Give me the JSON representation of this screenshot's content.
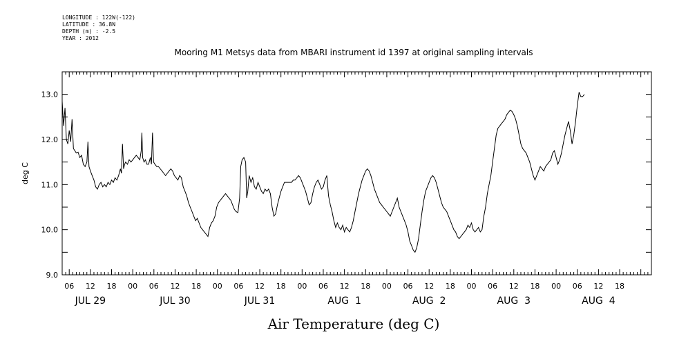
{
  "metadata": {
    "lines": [
      "LONGITUDE : 122W(-122)",
      "LATITUDE : 36.8N",
      "DEPTH (m) : -2.5",
      "YEAR : 2012"
    ]
  },
  "chart_data": {
    "type": "line",
    "title": "Mooring M1 Metsys data from MBARI instrument id 1397 at original sampling intervals",
    "xlabel": "Air Temperature (deg C)",
    "ylabel": "deg C",
    "ylim": [
      9.0,
      13.5
    ],
    "yticks": [
      "9.0",
      "10.0",
      "11.0",
      "12.0",
      "13.0"
    ],
    "xlim_hours": [
      0,
      167
    ],
    "hour_tick_labels": [
      "06",
      "12",
      "18",
      "00",
      "06",
      "12",
      "18",
      "00",
      "06",
      "12",
      "18",
      "00",
      "06",
      "12",
      "18",
      "00",
      "06",
      "12",
      "18",
      "00",
      "06",
      "12",
      "18",
      "00",
      "06",
      "12",
      "18"
    ],
    "day_labels": [
      "JUL 29",
      "JUL 30",
      "JUL 31",
      "AUG  1",
      "AUG  2",
      "AUG  3",
      "AUG  4"
    ],
    "grid": false,
    "series": [
      {
        "values": [
          [
            0,
            12.85
          ],
          [
            0.4,
            12.3
          ],
          [
            0.8,
            12.7
          ],
          [
            1.2,
            12.0
          ],
          [
            1.6,
            11.9
          ],
          [
            2,
            12.2
          ],
          [
            2.4,
            11.95
          ],
          [
            2.8,
            12.45
          ],
          [
            3.2,
            11.8
          ],
          [
            3.6,
            11.75
          ],
          [
            4,
            11.7
          ],
          [
            4.5,
            11.72
          ],
          [
            5,
            11.6
          ],
          [
            5.5,
            11.65
          ],
          [
            6,
            11.45
          ],
          [
            6.5,
            11.4
          ],
          [
            7,
            11.5
          ],
          [
            7.3,
            11.95
          ],
          [
            7.6,
            11.4
          ],
          [
            8,
            11.3
          ],
          [
            8.5,
            11.2
          ],
          [
            9,
            11.1
          ],
          [
            9.5,
            10.95
          ],
          [
            10,
            10.9
          ],
          [
            10.5,
            11.0
          ],
          [
            11,
            11.05
          ],
          [
            11.5,
            10.95
          ],
          [
            12,
            11.0
          ],
          [
            12.5,
            10.95
          ],
          [
            13,
            11.05
          ],
          [
            13.5,
            11.0
          ],
          [
            14,
            11.1
          ],
          [
            14.5,
            11.05
          ],
          [
            15,
            11.15
          ],
          [
            15.5,
            11.1
          ],
          [
            16,
            11.2
          ],
          [
            16.5,
            11.35
          ],
          [
            16.8,
            11.25
          ],
          [
            17.1,
            11.9
          ],
          [
            17.4,
            11.35
          ],
          [
            17.7,
            11.45
          ],
          [
            18,
            11.5
          ],
          [
            18.5,
            11.45
          ],
          [
            19,
            11.55
          ],
          [
            19.5,
            11.5
          ],
          [
            20,
            11.55
          ],
          [
            20.5,
            11.6
          ],
          [
            21,
            11.65
          ],
          [
            21.5,
            11.6
          ],
          [
            22,
            11.55
          ],
          [
            22.4,
            11.75
          ],
          [
            22.6,
            12.15
          ],
          [
            22.8,
            11.6
          ],
          [
            23.2,
            11.5
          ],
          [
            23.6,
            11.55
          ],
          [
            24,
            11.45
          ],
          [
            24.5,
            11.45
          ],
          [
            25,
            11.6
          ],
          [
            25.3,
            11.45
          ],
          [
            25.6,
            12.15
          ],
          [
            25.9,
            11.5
          ],
          [
            26.3,
            11.45
          ],
          [
            26.8,
            11.4
          ],
          [
            27.3,
            11.4
          ],
          [
            27.8,
            11.35
          ],
          [
            28.3,
            11.3
          ],
          [
            28.8,
            11.25
          ],
          [
            29.3,
            11.2
          ],
          [
            29.8,
            11.25
          ],
          [
            30.3,
            11.3
          ],
          [
            30.8,
            11.35
          ],
          [
            31.3,
            11.3
          ],
          [
            31.8,
            11.2
          ],
          [
            32.3,
            11.15
          ],
          [
            32.8,
            11.1
          ],
          [
            33.3,
            11.2
          ],
          [
            33.8,
            11.15
          ],
          [
            34.3,
            10.95
          ],
          [
            34.8,
            10.85
          ],
          [
            35.3,
            10.75
          ],
          [
            35.8,
            10.6
          ],
          [
            36.3,
            10.5
          ],
          [
            36.8,
            10.4
          ],
          [
            37.3,
            10.3
          ],
          [
            37.8,
            10.2
          ],
          [
            38.3,
            10.25
          ],
          [
            38.8,
            10.15
          ],
          [
            39.3,
            10.05
          ],
          [
            39.8,
            10.0
          ],
          [
            40.3,
            9.95
          ],
          [
            40.8,
            9.9
          ],
          [
            41.3,
            9.85
          ],
          [
            41.8,
            10.05
          ],
          [
            42.3,
            10.15
          ],
          [
            42.8,
            10.2
          ],
          [
            43.3,
            10.3
          ],
          [
            43.8,
            10.5
          ],
          [
            44.3,
            10.6
          ],
          [
            44.8,
            10.65
          ],
          [
            45.3,
            10.7
          ],
          [
            45.8,
            10.75
          ],
          [
            46.3,
            10.8
          ],
          [
            46.8,
            10.75
          ],
          [
            47.3,
            10.7
          ],
          [
            47.8,
            10.65
          ],
          [
            48.3,
            10.55
          ],
          [
            48.8,
            10.45
          ],
          [
            49.3,
            10.4
          ],
          [
            49.8,
            10.38
          ],
          [
            50.3,
            10.7
          ],
          [
            50.6,
            11.4
          ],
          [
            51,
            11.55
          ],
          [
            51.5,
            11.6
          ],
          [
            52,
            11.5
          ],
          [
            52.3,
            10.7
          ],
          [
            52.6,
            10.85
          ],
          [
            53,
            11.2
          ],
          [
            53.5,
            11.05
          ],
          [
            54,
            11.15
          ],
          [
            54.5,
            10.95
          ],
          [
            55,
            10.9
          ],
          [
            55.5,
            11.05
          ],
          [
            56,
            10.95
          ],
          [
            56.5,
            10.85
          ],
          [
            57,
            10.8
          ],
          [
            57.5,
            10.9
          ],
          [
            58,
            10.85
          ],
          [
            58.5,
            10.9
          ],
          [
            59,
            10.8
          ],
          [
            59.5,
            10.5
          ],
          [
            60,
            10.3
          ],
          [
            60.5,
            10.35
          ],
          [
            61,
            10.55
          ],
          [
            61.5,
            10.7
          ],
          [
            62,
            10.85
          ],
          [
            62.5,
            10.95
          ],
          [
            63,
            11.05
          ],
          [
            63.5,
            11.05
          ],
          [
            64,
            11.05
          ],
          [
            64.5,
            11.05
          ],
          [
            65,
            11.05
          ],
          [
            65.5,
            11.1
          ],
          [
            66,
            11.1
          ],
          [
            66.5,
            11.15
          ],
          [
            67,
            11.2
          ],
          [
            67.5,
            11.15
          ],
          [
            68,
            11.05
          ],
          [
            68.5,
            10.95
          ],
          [
            69,
            10.85
          ],
          [
            69.5,
            10.7
          ],
          [
            70,
            10.55
          ],
          [
            70.5,
            10.6
          ],
          [
            71,
            10.8
          ],
          [
            71.5,
            10.95
          ],
          [
            72,
            11.05
          ],
          [
            72.5,
            11.1
          ],
          [
            73,
            11.0
          ],
          [
            73.5,
            10.9
          ],
          [
            74,
            10.95
          ],
          [
            74.5,
            11.1
          ],
          [
            75,
            11.2
          ],
          [
            75.5,
            10.75
          ],
          [
            76,
            10.55
          ],
          [
            76.5,
            10.4
          ],
          [
            77,
            10.2
          ],
          [
            77.5,
            10.05
          ],
          [
            78,
            10.15
          ],
          [
            78.5,
            10.05
          ],
          [
            79,
            10.0
          ],
          [
            79.5,
            10.1
          ],
          [
            80,
            9.95
          ],
          [
            80.5,
            10.05
          ],
          [
            81,
            10.0
          ],
          [
            81.5,
            9.95
          ],
          [
            82,
            10.05
          ],
          [
            82.5,
            10.2
          ],
          [
            83,
            10.4
          ],
          [
            83.5,
            10.6
          ],
          [
            84,
            10.8
          ],
          [
            84.5,
            10.95
          ],
          [
            85,
            11.1
          ],
          [
            85.5,
            11.2
          ],
          [
            86,
            11.3
          ],
          [
            86.5,
            11.35
          ],
          [
            87,
            11.3
          ],
          [
            87.5,
            11.2
          ],
          [
            88,
            11.05
          ],
          [
            88.5,
            10.9
          ],
          [
            89,
            10.8
          ],
          [
            89.5,
            10.7
          ],
          [
            90,
            10.6
          ],
          [
            90.5,
            10.55
          ],
          [
            91,
            10.5
          ],
          [
            91.5,
            10.45
          ],
          [
            92,
            10.4
          ],
          [
            92.5,
            10.35
          ],
          [
            93,
            10.3
          ],
          [
            93.5,
            10.4
          ],
          [
            94,
            10.5
          ],
          [
            94.5,
            10.6
          ],
          [
            95,
            10.7
          ],
          [
            95.5,
            10.5
          ],
          [
            96,
            10.4
          ],
          [
            96.5,
            10.3
          ],
          [
            97,
            10.2
          ],
          [
            97.5,
            10.1
          ],
          [
            98,
            9.95
          ],
          [
            98.5,
            9.75
          ],
          [
            99,
            9.65
          ],
          [
            99.5,
            9.55
          ],
          [
            100,
            9.5
          ],
          [
            100.5,
            9.6
          ],
          [
            101,
            9.8
          ],
          [
            101.5,
            10.1
          ],
          [
            102,
            10.4
          ],
          [
            102.5,
            10.65
          ],
          [
            103,
            10.85
          ],
          [
            103.5,
            10.95
          ],
          [
            104,
            11.05
          ],
          [
            104.5,
            11.15
          ],
          [
            105,
            11.2
          ],
          [
            105.5,
            11.15
          ],
          [
            106,
            11.05
          ],
          [
            106.5,
            10.9
          ],
          [
            107,
            10.75
          ],
          [
            107.5,
            10.6
          ],
          [
            108,
            10.5
          ],
          [
            108.5,
            10.45
          ],
          [
            109,
            10.4
          ],
          [
            109.5,
            10.3
          ],
          [
            110,
            10.2
          ],
          [
            110.5,
            10.1
          ],
          [
            111,
            10.0
          ],
          [
            111.5,
            9.95
          ],
          [
            112,
            9.85
          ],
          [
            112.5,
            9.8
          ],
          [
            113,
            9.85
          ],
          [
            113.5,
            9.9
          ],
          [
            114,
            9.95
          ],
          [
            114.5,
            10.0
          ],
          [
            115,
            10.1
          ],
          [
            115.5,
            10.05
          ],
          [
            116,
            10.15
          ],
          [
            116.5,
            10.0
          ],
          [
            117,
            9.95
          ],
          [
            117.5,
            10.0
          ],
          [
            118,
            10.05
          ],
          [
            118.5,
            9.95
          ],
          [
            119,
            10.0
          ],
          [
            119.5,
            10.3
          ],
          [
            120,
            10.5
          ],
          [
            120.5,
            10.8
          ],
          [
            121,
            11.0
          ],
          [
            121.5,
            11.2
          ],
          [
            122,
            11.5
          ],
          [
            122.5,
            11.8
          ],
          [
            123,
            12.1
          ],
          [
            123.5,
            12.25
          ],
          [
            124,
            12.3
          ],
          [
            124.5,
            12.35
          ],
          [
            125,
            12.4
          ],
          [
            125.5,
            12.45
          ],
          [
            126,
            12.55
          ],
          [
            126.5,
            12.6
          ],
          [
            127,
            12.65
          ],
          [
            127.5,
            12.62
          ],
          [
            128,
            12.55
          ],
          [
            128.5,
            12.45
          ],
          [
            129,
            12.3
          ],
          [
            129.5,
            12.1
          ],
          [
            130,
            11.9
          ],
          [
            130.5,
            11.8
          ],
          [
            131,
            11.75
          ],
          [
            131.5,
            11.7
          ],
          [
            132,
            11.6
          ],
          [
            132.5,
            11.5
          ],
          [
            133,
            11.35
          ],
          [
            133.5,
            11.2
          ],
          [
            134,
            11.1
          ],
          [
            134.5,
            11.2
          ],
          [
            135,
            11.3
          ],
          [
            135.5,
            11.4
          ],
          [
            136,
            11.35
          ],
          [
            136.5,
            11.3
          ],
          [
            137,
            11.4
          ],
          [
            137.5,
            11.45
          ],
          [
            138,
            11.5
          ],
          [
            138.5,
            11.55
          ],
          [
            139,
            11.7
          ],
          [
            139.5,
            11.75
          ],
          [
            140,
            11.6
          ],
          [
            140.5,
            11.45
          ],
          [
            141,
            11.55
          ],
          [
            141.5,
            11.7
          ],
          [
            142,
            11.9
          ],
          [
            142.5,
            12.1
          ],
          [
            143,
            12.25
          ],
          [
            143.5,
            12.4
          ],
          [
            144,
            12.2
          ],
          [
            144.5,
            11.9
          ],
          [
            145,
            12.1
          ],
          [
            145.5,
            12.4
          ],
          [
            146,
            12.75
          ],
          [
            146.5,
            13.05
          ],
          [
            147,
            12.95
          ],
          [
            147.5,
            12.95
          ],
          [
            148,
            13.0
          ]
        ]
      }
    ]
  }
}
